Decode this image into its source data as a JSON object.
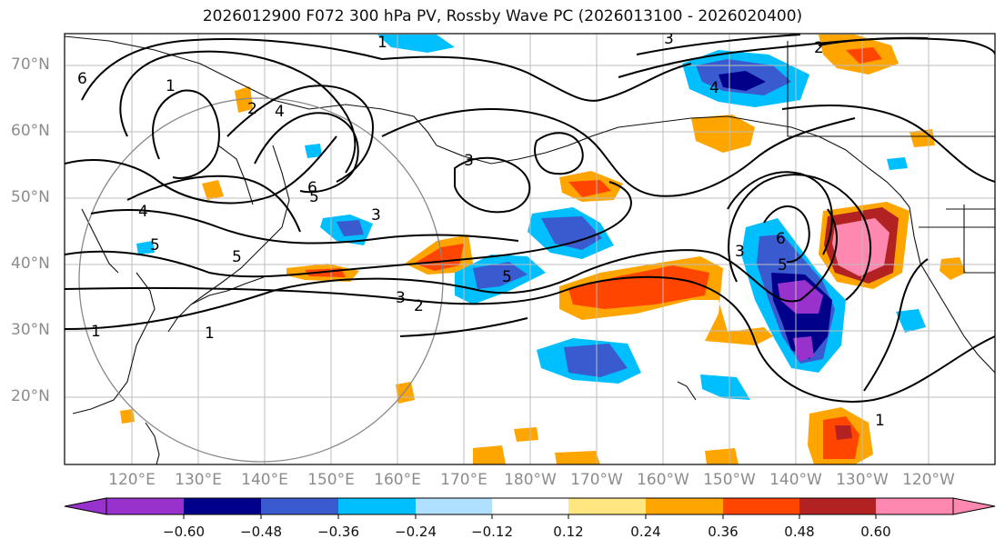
{
  "title": "2026012900 F072 300 hPa PV, Rossby Wave PC (2026013100 - 2026020400)",
  "latitude_labels": [
    "70°N",
    "60°N",
    "50°N",
    "40°N",
    "30°N",
    "20°N"
  ],
  "longitude_labels": [
    "120°E",
    "130°E",
    "140°E",
    "150°E",
    "160°E",
    "170°E",
    "180°W",
    "170°W",
    "160°W",
    "150°W",
    "140°W",
    "130°W",
    "120°W"
  ],
  "colorbar": {
    "tick_labels": [
      "−0.60",
      "−0.48",
      "−0.36",
      "−0.24",
      "−0.12",
      "0.12",
      "0.24",
      "0.36",
      "0.48",
      "0.60"
    ],
    "colors": [
      "#9932cc",
      "#00008b",
      "#3a5bd0",
      "#00bfff",
      "#b0e0ff",
      "#ffffff",
      "#ffe680",
      "#ffa500",
      "#ff4500",
      "#b22222",
      "#ff88b0"
    ]
  },
  "contour_labels": [
    "1",
    "1",
    "1",
    "1",
    "1",
    "2",
    "2",
    "2",
    "3",
    "3",
    "3",
    "3",
    "3",
    "4",
    "4",
    "4",
    "5",
    "5",
    "5",
    "5",
    "5",
    "6",
    "6",
    "6"
  ]
}
